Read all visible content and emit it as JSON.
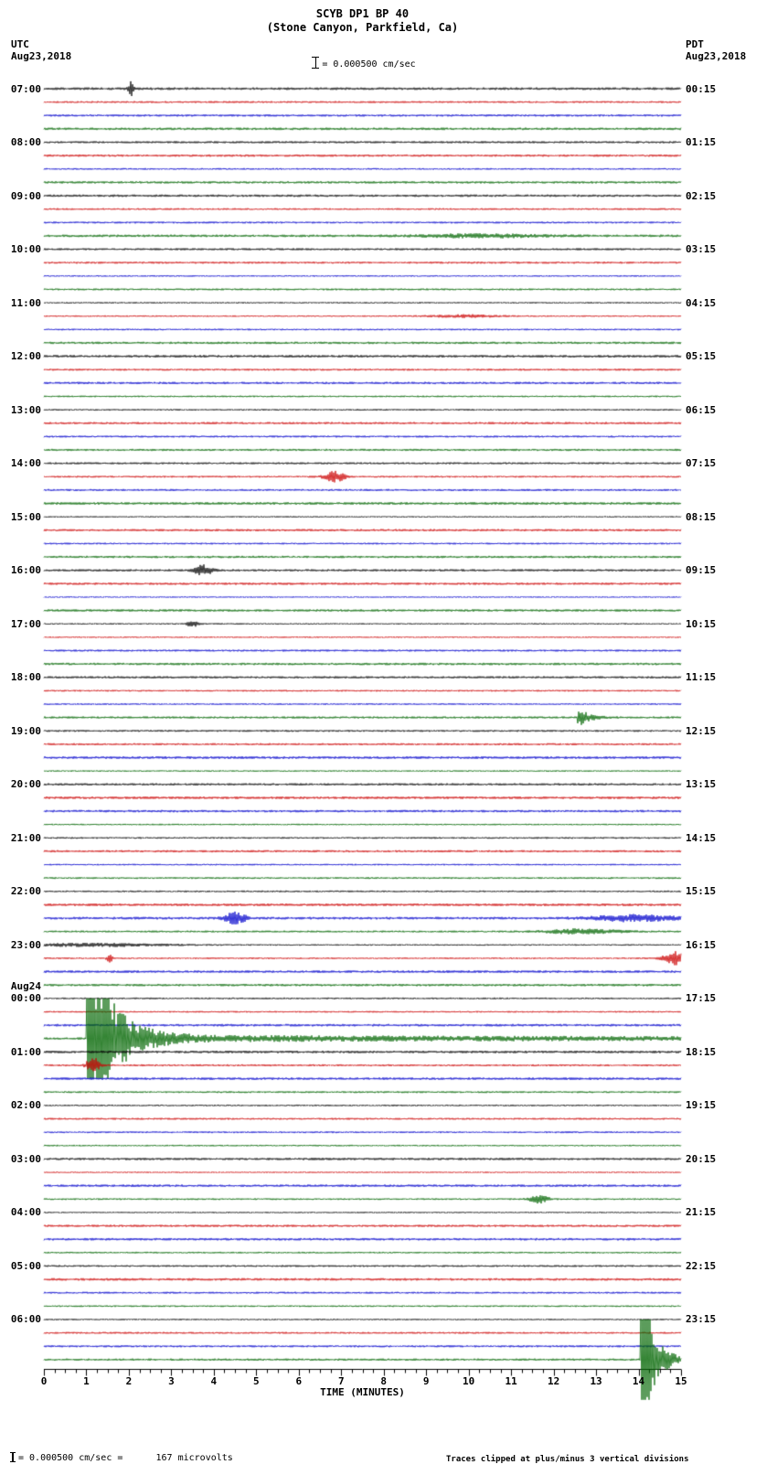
{
  "header": {
    "station": "SCYB DP1 BP 40",
    "location": "(Stone Canyon, Parkfield, Ca)",
    "scale_text": "= 0.000500 cm/sec",
    "left": {
      "tz": "UTC",
      "date": "Aug23,2018"
    },
    "right": {
      "tz": "PDT",
      "date": "Aug23,2018"
    }
  },
  "x_axis": {
    "label": "TIME (MINUTES)",
    "ticks": [
      0,
      1,
      2,
      3,
      4,
      5,
      6,
      7,
      8,
      9,
      10,
      11,
      12,
      13,
      14,
      15
    ]
  },
  "footer": {
    "left_text": "= 0.000500 cm/sec =      167 microvolts",
    "right_note": "Traces clipped at plus/minus 3 vertical divisions"
  },
  "chart_data": {
    "type": "line",
    "kind": "seismogram-helicorder",
    "station": "SCYB DP1 BP 40",
    "location": "(Stone Canyon, Parkfield, Ca)",
    "scale": "1 division = 0.000500 cm/sec = 167 microvolts",
    "clip_note": "Traces clipped at plus/minus 3 vertical divisions",
    "rows": 96,
    "minutes_per_row": 15,
    "traces_per_hour": 4,
    "clip_divisions": 3,
    "colors": [
      "#000000",
      "#cc0000",
      "#0000cc",
      "#006600"
    ],
    "left_labels": [
      "07:00",
      "08:00",
      "09:00",
      "10:00",
      "11:00",
      "12:00",
      "13:00",
      "14:00",
      "15:00",
      "16:00",
      "17:00",
      "18:00",
      "19:00",
      "20:00",
      "21:00",
      "22:00",
      "23:00",
      "00:00",
      "01:00",
      "02:00",
      "03:00",
      "04:00",
      "05:00",
      "06:00"
    ],
    "right_labels": [
      "00:15",
      "01:15",
      "02:15",
      "03:15",
      "04:15",
      "05:15",
      "06:15",
      "07:15",
      "08:15",
      "09:15",
      "10:15",
      "11:15",
      "12:15",
      "13:15",
      "14:15",
      "15:15",
      "16:15",
      "17:15",
      "18:15",
      "19:15",
      "20:15",
      "21:15",
      "22:15",
      "23:15"
    ],
    "day_change": {
      "row": 68,
      "text": "Aug24"
    },
    "events": [
      {
        "row": 0,
        "t": 2.05,
        "dur": 0.1,
        "amp": 10,
        "kind": "spike"
      },
      {
        "row": 11,
        "t": 10.3,
        "dur": 2.0,
        "amp": 1.6,
        "kind": "swell"
      },
      {
        "row": 17,
        "t": 9.9,
        "dur": 1.2,
        "amp": 1.3,
        "kind": "swell"
      },
      {
        "row": 29,
        "t": 6.85,
        "dur": 0.35,
        "amp": 5.5,
        "kind": "burst"
      },
      {
        "row": 36,
        "t": 3.75,
        "dur": 0.3,
        "amp": 5.5,
        "kind": "burst"
      },
      {
        "row": 40,
        "t": 3.5,
        "dur": 0.2,
        "amp": 3.2,
        "kind": "burst"
      },
      {
        "row": 47,
        "t": 12.55,
        "dur": 0.6,
        "amp": 14,
        "kind": "quake"
      },
      {
        "row": 62,
        "t": 4.5,
        "dur": 0.35,
        "amp": 6.5,
        "kind": "burst"
      },
      {
        "row": 62,
        "t": 13.9,
        "dur": 1.4,
        "amp": 3.2,
        "kind": "swell"
      },
      {
        "row": 63,
        "t": 12.7,
        "dur": 1.2,
        "amp": 2.6,
        "kind": "swell"
      },
      {
        "row": 64,
        "t": 1.2,
        "dur": 2.4,
        "amp": 1.6,
        "kind": "swell"
      },
      {
        "row": 65,
        "t": 1.55,
        "dur": 0.1,
        "amp": 5,
        "kind": "spike"
      },
      {
        "row": 65,
        "t": 14.85,
        "dur": 0.35,
        "amp": 7,
        "kind": "burst"
      },
      {
        "row": 71,
        "t": 1.0,
        "dur": 1.65,
        "amp": 120,
        "kind": "quake",
        "coda": 18,
        "coda_amp": 3
      },
      {
        "row": 73,
        "t": 1.15,
        "dur": 0.2,
        "amp": 9,
        "kind": "burst"
      },
      {
        "row": 83,
        "t": 11.65,
        "dur": 0.3,
        "amp": 4.5,
        "kind": "burst"
      },
      {
        "row": 95,
        "t": 14.05,
        "dur": 0.75,
        "amp": 100,
        "kind": "quake",
        "coda": 0.5,
        "coda_amp": 6
      }
    ]
  }
}
